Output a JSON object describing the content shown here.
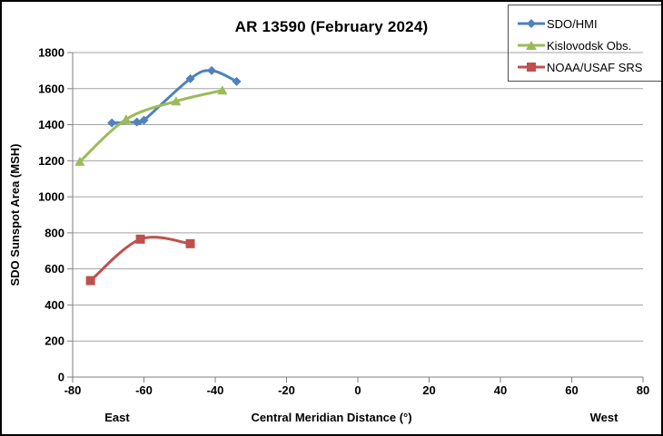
{
  "chart_data": {
    "type": "line",
    "title": "AR 13590 (February 2024)",
    "xlabel": "Central Meridian Distance (°)",
    "ylabel": "SDO Sunspot Area (MSH)",
    "direction_labels": {
      "east": "East",
      "west": "West"
    },
    "xlim": [
      -80,
      80
    ],
    "ylim": [
      0,
      1800
    ],
    "xticks": [
      -80,
      -60,
      -40,
      -20,
      0,
      20,
      40,
      60,
      80
    ],
    "yticks": [
      0,
      200,
      400,
      600,
      800,
      1000,
      1200,
      1400,
      1600,
      1800
    ],
    "grid": "horizontal",
    "legend_position": "top-right",
    "series": [
      {
        "name": "SDO/HMI",
        "color": "#4F81BD",
        "marker": "diamond",
        "smooth": true,
        "x": [
          -69,
          -62,
          -60,
          -47,
          -41,
          -34
        ],
        "y": [
          1410,
          1415,
          1425,
          1655,
          1700,
          1640
        ]
      },
      {
        "name": "Kislovodsk Obs.",
        "color": "#9BBB59",
        "marker": "triangle",
        "smooth": true,
        "x": [
          -78,
          -65,
          -51,
          -38
        ],
        "y": [
          1195,
          1430,
          1530,
          1590
        ]
      },
      {
        "name": "NOAA/USAF SRS",
        "color": "#C0504D",
        "marker": "square",
        "smooth": true,
        "x": [
          -75,
          -61,
          -47
        ],
        "y": [
          535,
          765,
          740
        ]
      }
    ]
  },
  "colors": {
    "grid": "#A3A3A3",
    "axis": "#7F7F7F",
    "text": "#000000",
    "legend_border": "#4D4D4D",
    "background": "#FFFFFF",
    "figure_border": "#000000"
  }
}
